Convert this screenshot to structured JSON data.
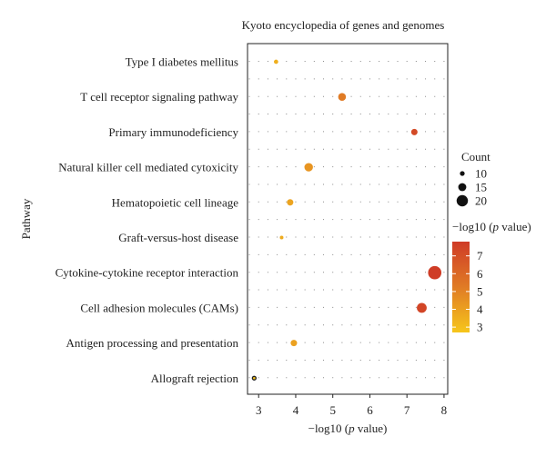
{
  "chart_data": {
    "type": "scatter",
    "title": "Kyoto encyclopedia of genes and genomes",
    "xlabel": "−log10 (p value)",
    "ylabel": "Pathway",
    "xlim": [
      2.7,
      8.1
    ],
    "xticks": [
      3,
      4,
      5,
      6,
      7,
      8
    ],
    "grid": "dotted",
    "categories": [
      "Type I diabetes mellitus",
      "T cell receptor signaling pathway",
      "Primary immunodeficiency",
      "Natural killer cell mediated cytoxicity",
      "Hematopoietic cell lineage",
      "Graft-versus-host disease",
      "Cytokine-cytokine receptor interaction",
      "Cell adhesion molecules (CAMs)",
      "Antigen processing and presentation",
      "Allograft rejection"
    ],
    "x": [
      3.47,
      5.25,
      7.2,
      4.35,
      3.85,
      3.62,
      7.75,
      7.4,
      3.95,
      2.88
    ],
    "count": [
      9,
      14,
      12,
      15,
      12,
      8,
      22,
      17,
      12,
      8
    ],
    "color_value": [
      3.47,
      5.25,
      7.2,
      4.35,
      3.85,
      3.62,
      7.75,
      7.4,
      3.95,
      2.88
    ],
    "size_legend": {
      "title": "Count",
      "values": [
        10,
        15,
        20
      ]
    },
    "color_legend": {
      "title": "−log10 (p value)",
      "ticks": [
        7,
        6,
        5,
        4,
        3
      ],
      "range": [
        2.7,
        7.8
      ],
      "low_color": "#f6c61b",
      "mid_color": "#e07b25",
      "high_color": "#cf3b26"
    },
    "legend_position": "right"
  }
}
